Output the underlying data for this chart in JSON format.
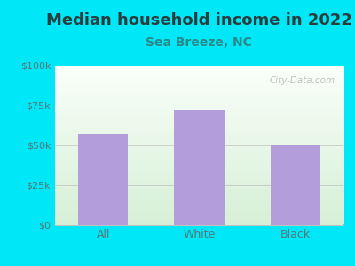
{
  "title": "Median household income in 2022",
  "subtitle": "Sea Breeze, NC",
  "categories": [
    "All",
    "White",
    "Black"
  ],
  "values": [
    57000,
    72000,
    50000
  ],
  "bar_color": "#b39ddb",
  "background_color": "#00e8f8",
  "plot_bg_top": "#f5fffa",
  "plot_bg_bottom": "#d8f0d8",
  "title_color": "#2a3d3d",
  "subtitle_color": "#2a8888",
  "tick_color": "#557777",
  "ylim": [
    0,
    100000
  ],
  "yticks": [
    0,
    25000,
    50000,
    75000,
    100000
  ],
  "ytick_labels": [
    "$0",
    "$25k",
    "$50k",
    "$75k",
    "$100k"
  ],
  "title_fontsize": 13,
  "subtitle_fontsize": 10,
  "watermark": "City-Data.com",
  "grid_color": "#c0c0c0",
  "xtick_fontsize": 9,
  "ytick_fontsize": 8
}
